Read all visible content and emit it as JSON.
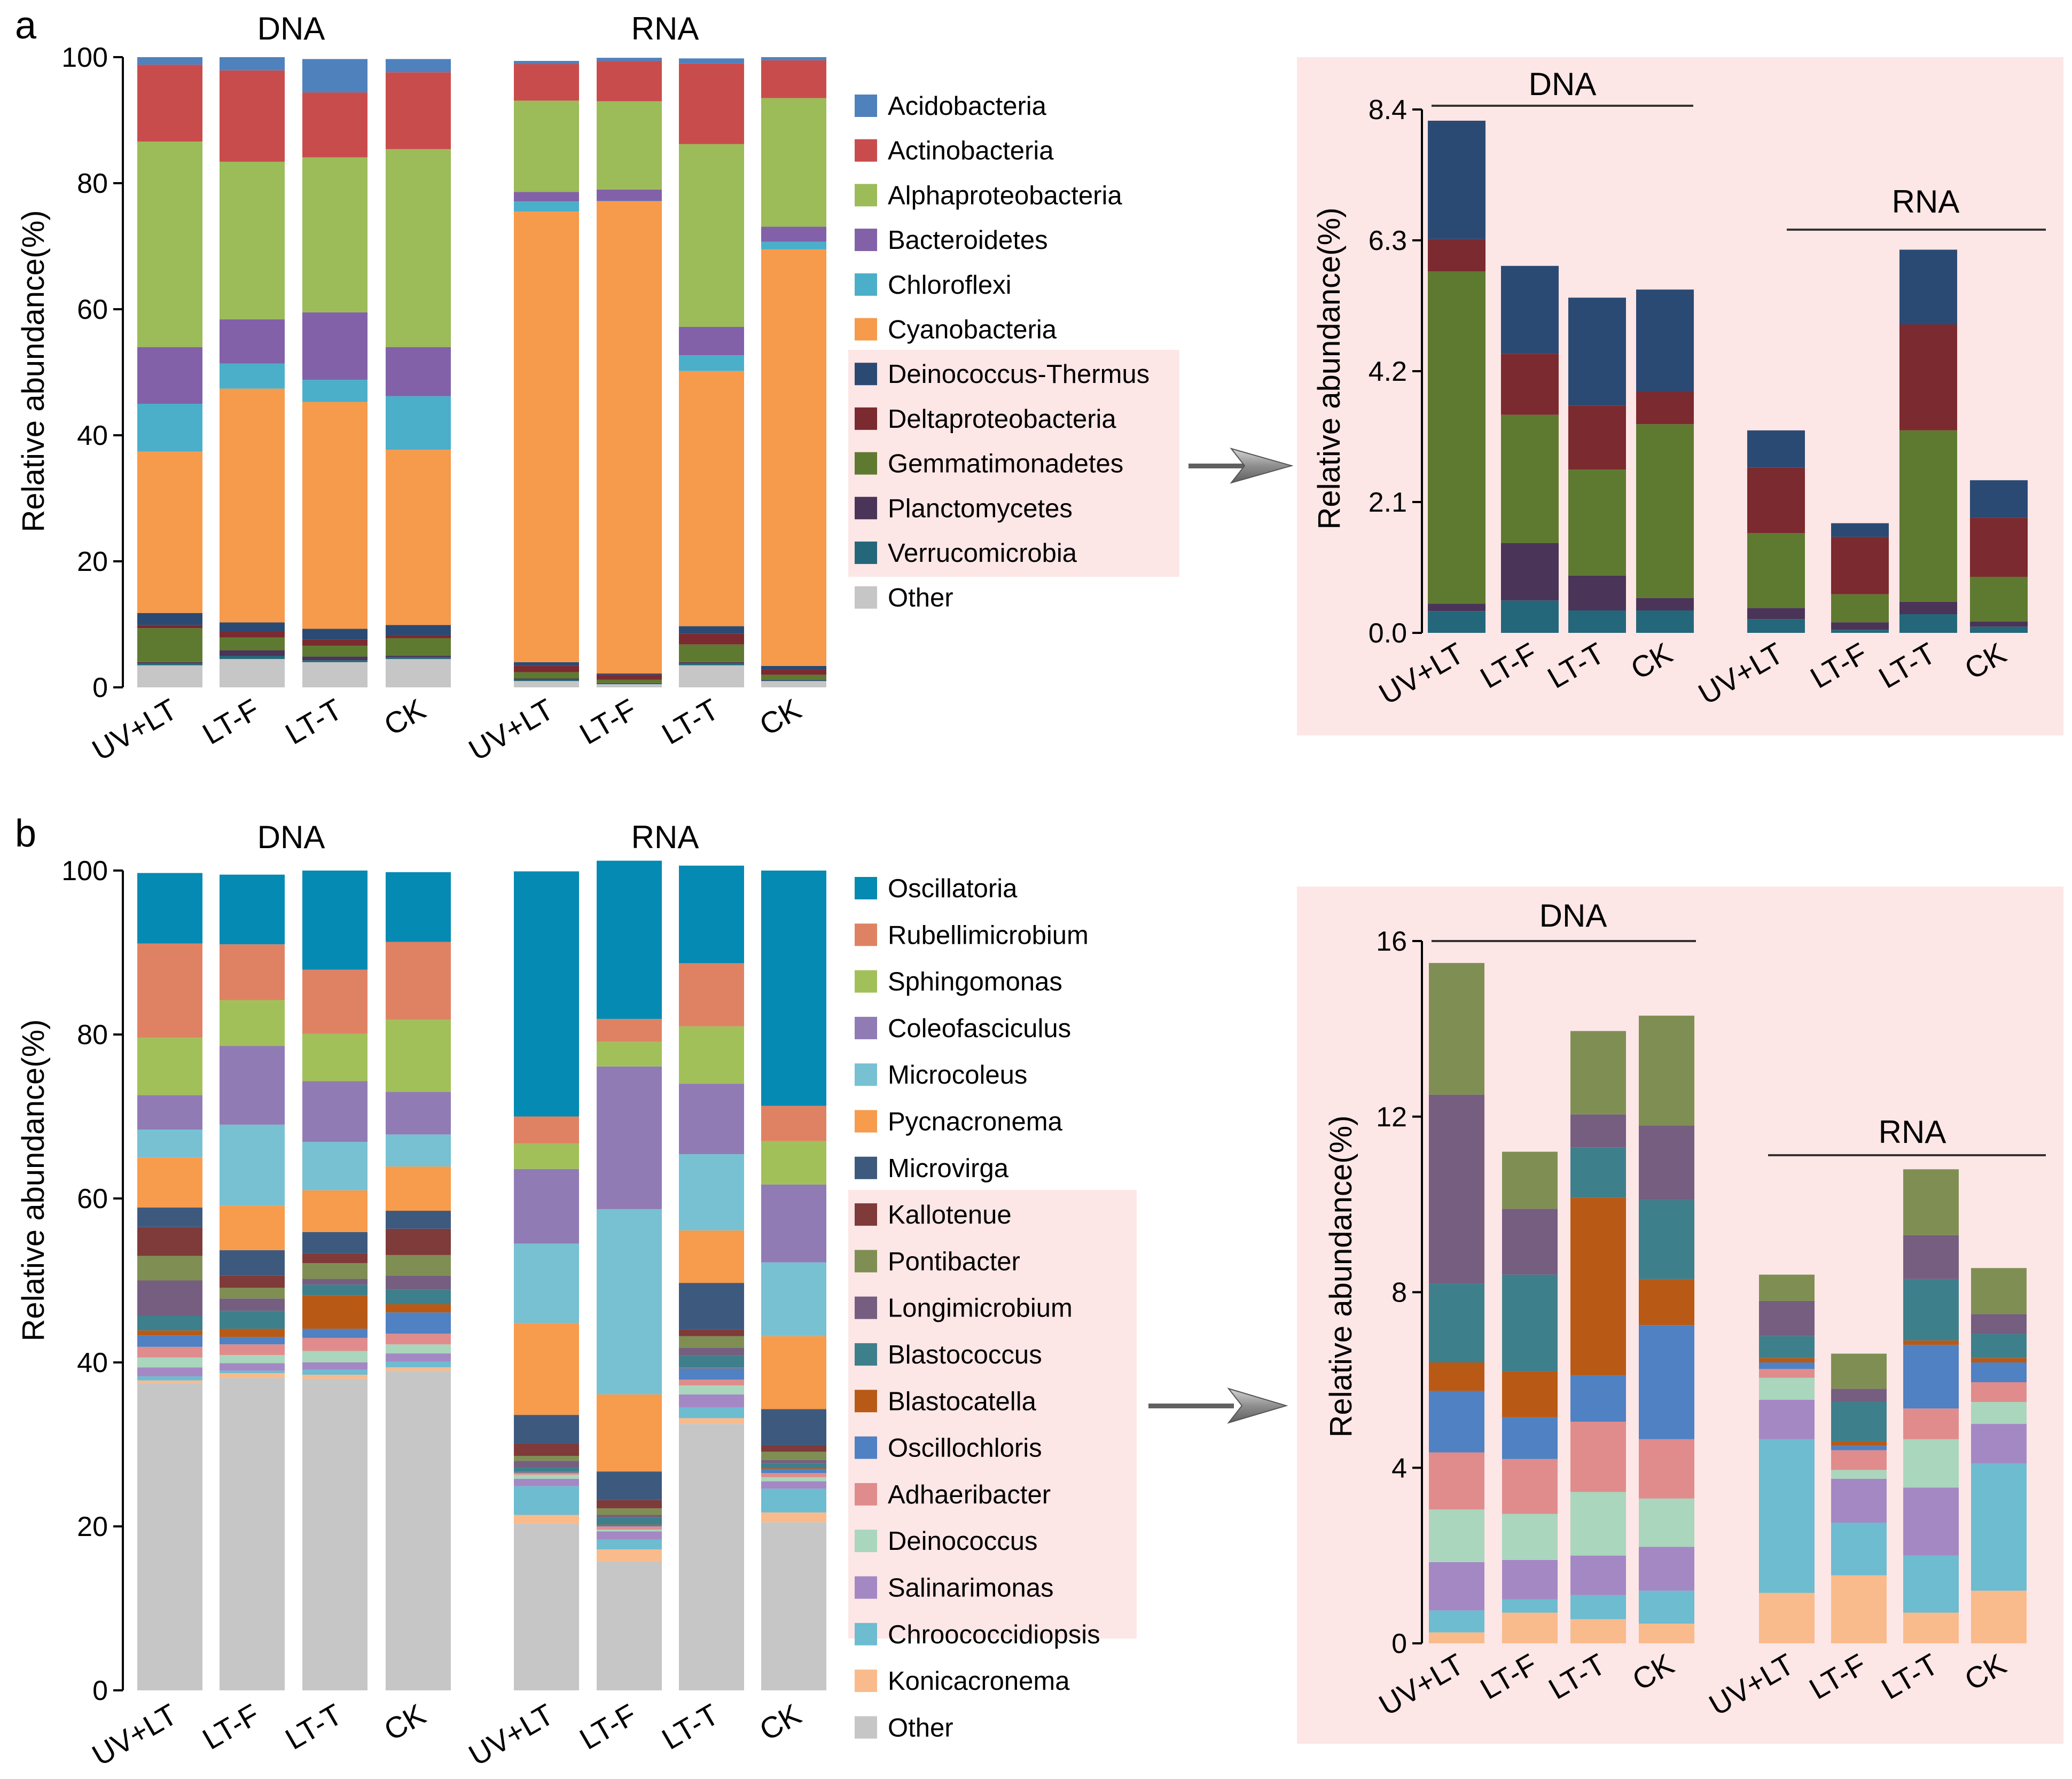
{
  "categories": [
    "UV+LT",
    "LT-F",
    "LT-T",
    "CK"
  ],
  "ylabel": "Relative abundance(%)",
  "chart_data": [
    {
      "id": "a-main",
      "type": "bar",
      "panel_letter": "a",
      "stacked": true,
      "group_titles": [
        "DNA",
        "RNA"
      ],
      "ylim": [
        0,
        100
      ],
      "yticks": [
        "0",
        "20",
        "40",
        "60",
        "80",
        "100"
      ],
      "categories": [
        "UV+LT",
        "LT-F",
        "LT-T",
        "CK",
        "UV+LT",
        "LT-F",
        "LT-T",
        "CK"
      ],
      "series": [
        {
          "name": "Other",
          "color": "#c6c6c6",
          "values": [
            3.5,
            4.5,
            4.0,
            4.5,
            1.0,
            0.5,
            3.5,
            1.0
          ]
        },
        {
          "name": "Verrucomicrobia",
          "color": "#25677a",
          "values": [
            0.3,
            0.5,
            0.3,
            0.3,
            0.2,
            0.1,
            0.3,
            0.1
          ]
        },
        {
          "name": "Planctomycetes",
          "color": "#4a3458",
          "values": [
            0.2,
            0.9,
            0.6,
            0.2,
            0.2,
            0.1,
            0.2,
            0.1
          ]
        },
        {
          "name": "Gemmatimonadetes",
          "color": "#5e7a30",
          "values": [
            5.4,
            2.0,
            1.7,
            2.8,
            1.0,
            0.5,
            2.8,
            0.8
          ]
        },
        {
          "name": "Deltaproteobacteria",
          "color": "#7b2a2f",
          "values": [
            0.5,
            1.0,
            1.0,
            0.5,
            1.0,
            0.8,
            1.7,
            0.8
          ]
        },
        {
          "name": "Deinococcus-Thermus",
          "color": "#2b4a73",
          "values": [
            1.9,
            1.4,
            1.7,
            1.6,
            0.6,
            0.2,
            1.2,
            0.6
          ]
        },
        {
          "name": "Cyanobacteria",
          "color": "#f69a4c",
          "values": [
            25.6,
            37.1,
            36.0,
            27.8,
            71.5,
            74.9,
            40.5,
            66.1
          ]
        },
        {
          "name": "Chloroflexi",
          "color": "#4bafca",
          "values": [
            7.6,
            4.0,
            3.5,
            8.5,
            1.6,
            0.1,
            2.5,
            1.2
          ]
        },
        {
          "name": "Bacteroidetes",
          "color": "#8261a8",
          "values": [
            9.0,
            7.0,
            10.7,
            7.8,
            1.5,
            1.8,
            4.5,
            2.4
          ]
        },
        {
          "name": "Alphaproteobacteria",
          "color": "#9cbb59",
          "values": [
            32.6,
            25.0,
            24.6,
            31.4,
            14.5,
            14.0,
            29.0,
            20.4
          ]
        },
        {
          "name": "Actinobacteria",
          "color": "#c94c4d",
          "values": [
            12.2,
            14.5,
            10.3,
            12.2,
            5.8,
            6.4,
            12.8,
            6.0
          ]
        },
        {
          "name": "Acidobacteria",
          "color": "#4f81bd",
          "values": [
            1.2,
            2.1,
            5.3,
            2.1,
            0.5,
            0.5,
            0.8,
            0.5
          ]
        }
      ],
      "legend_order": [
        "Acidobacteria",
        "Actinobacteria",
        "Alphaproteobacteria",
        "Bacteroidetes",
        "Chloroflexi",
        "Cyanobacteria",
        "Deinococcus-Thermus",
        "Deltaproteobacteria",
        "Gemmatimonadetes",
        "Planctomycetes",
        "Verrucomicrobia",
        "Other"
      ],
      "legend_highlighted": [
        "Deinococcus-Thermus",
        "Deltaproteobacteria",
        "Gemmatimonadetes",
        "Planctomycetes",
        "Verrucomicrobia"
      ]
    },
    {
      "id": "a-zoom",
      "type": "bar",
      "stacked": true,
      "group_titles": [
        "DNA",
        "RNA"
      ],
      "ylim": [
        0,
        8.4
      ],
      "yticks": [
        "0.0",
        "2.1",
        "4.2",
        "6.3",
        "8.4"
      ],
      "categories": [
        "UV+LT",
        "LT-F",
        "LT-T",
        "CK",
        "UV+LT",
        "LT-F",
        "LT-T",
        "CK"
      ],
      "series": [
        {
          "name": "Verrucomicrobia",
          "color": "#25677a",
          "values": [
            0.35,
            0.52,
            0.36,
            0.36,
            0.22,
            0.05,
            0.3,
            0.1
          ]
        },
        {
          "name": "Planctomycetes",
          "color": "#4a3458",
          "values": [
            0.12,
            0.92,
            0.56,
            0.2,
            0.18,
            0.12,
            0.2,
            0.08
          ]
        },
        {
          "name": "Gemmatimonadetes",
          "color": "#5e7a30",
          "values": [
            5.33,
            2.06,
            1.7,
            2.79,
            1.2,
            0.45,
            2.75,
            0.72
          ]
        },
        {
          "name": "Deltaproteobacteria",
          "color": "#7b2a2f",
          "values": [
            0.52,
            0.98,
            1.03,
            0.52,
            1.05,
            0.92,
            1.7,
            0.95
          ]
        },
        {
          "name": "Deinococcus-Thermus",
          "color": "#2b4a73",
          "values": [
            1.9,
            1.41,
            1.73,
            1.64,
            0.6,
            0.22,
            1.2,
            0.6
          ]
        }
      ]
    },
    {
      "id": "b-main",
      "type": "bar",
      "panel_letter": "b",
      "stacked": true,
      "group_titles": [
        "DNA",
        "RNA"
      ],
      "ylim": [
        0,
        100
      ],
      "yticks": [
        "0",
        "20",
        "40",
        "60",
        "80",
        "100"
      ],
      "categories": [
        "UV+LT",
        "LT-F",
        "LT-T",
        "CK",
        "UV+LT",
        "LT-F",
        "LT-T",
        "CK"
      ],
      "series": [
        {
          "name": "Other",
          "color": "#c6c6c6",
          "values": [
            37.5,
            38.1,
            38.0,
            39.0,
            20.3,
            15.7,
            32.5,
            20.5
          ]
        },
        {
          "name": "Konicacronema",
          "color": "#f9bb8c",
          "values": [
            0.3,
            0.6,
            0.5,
            0.4,
            1.1,
            1.5,
            0.7,
            1.2
          ]
        },
        {
          "name": "Chroococcidiopsis",
          "color": "#6dbcd0",
          "values": [
            0.5,
            0.3,
            0.6,
            0.7,
            3.5,
            1.2,
            1.3,
            2.9
          ]
        },
        {
          "name": "Salinarimonas",
          "color": "#a488c4",
          "values": [
            1.1,
            0.9,
            0.9,
            1.0,
            0.9,
            1.0,
            1.6,
            0.9
          ]
        },
        {
          "name": "Deinococcus",
          "color": "#a9d6bd",
          "values": [
            1.2,
            1.0,
            1.4,
            1.1,
            0.5,
            0.2,
            1.1,
            0.5
          ]
        },
        {
          "name": "Adhaeribacter",
          "color": "#e08c8c",
          "values": [
            1.3,
            1.3,
            1.6,
            1.3,
            0.2,
            0.4,
            0.7,
            0.5
          ]
        },
        {
          "name": "Oscillochloris",
          "color": "#4f81c3",
          "values": [
            1.4,
            0.9,
            1.1,
            2.6,
            0.1,
            0.1,
            1.4,
            0.5
          ]
        },
        {
          "name": "Blastocatella",
          "color": "#b85a16",
          "values": [
            0.6,
            1.0,
            4.1,
            1.0,
            0.1,
            0.1,
            0.1,
            0.1
          ]
        },
        {
          "name": "Blastococcus",
          "color": "#3e7f8c",
          "values": [
            1.8,
            2.2,
            1.3,
            1.8,
            0.5,
            0.9,
            1.4,
            0.6
          ]
        },
        {
          "name": "Longimicrobium",
          "color": "#755e80",
          "values": [
            4.3,
            1.5,
            0.7,
            1.7,
            0.8,
            0.3,
            1.0,
            0.4
          ]
        },
        {
          "name": "Pontibacter",
          "color": "#7f8f53",
          "values": [
            3.0,
            1.3,
            1.9,
            2.5,
            0.6,
            0.8,
            1.4,
            1.0
          ]
        },
        {
          "name": "Kallotenue",
          "color": "#7f3a3a",
          "values": [
            3.5,
            1.5,
            1.2,
            3.2,
            1.5,
            1.0,
            0.8,
            0.8
          ]
        },
        {
          "name": "Microvirga",
          "color": "#3d5a7e",
          "values": [
            2.4,
            3.1,
            2.6,
            2.2,
            3.5,
            3.5,
            5.7,
            4.4
          ]
        },
        {
          "name": "Pycnacronema",
          "color": "#f79b4d",
          "values": [
            6.1,
            5.4,
            5.1,
            5.4,
            11.2,
            9.4,
            6.4,
            8.9
          ]
        },
        {
          "name": "Microcoleus",
          "color": "#77c1d3",
          "values": [
            3.4,
            9.9,
            5.9,
            3.9,
            9.7,
            22.6,
            9.3,
            9.0
          ]
        },
        {
          "name": "Coleofasciculus",
          "color": "#917bb4",
          "values": [
            4.2,
            9.6,
            7.4,
            5.2,
            9.1,
            17.4,
            8.6,
            9.5
          ]
        },
        {
          "name": "Sphingomonas",
          "color": "#a2c05a",
          "values": [
            7.0,
            5.6,
            5.8,
            8.8,
            3.1,
            3.0,
            7.0,
            5.3
          ]
        },
        {
          "name": "Rubellimicrobium",
          "color": "#df8264",
          "values": [
            11.5,
            6.8,
            7.8,
            9.5,
            3.3,
            2.8,
            7.7,
            4.3
          ]
        },
        {
          "name": "Oscillatoria",
          "color": "#048ab3",
          "values": [
            8.6,
            8.5,
            12.1,
            8.5,
            29.9,
            19.3,
            11.9,
            28.7
          ]
        }
      ],
      "legend_order": [
        "Oscillatoria",
        "Rubellimicrobium",
        "Sphingomonas",
        "Coleofasciculus",
        "Microcoleus",
        "Pycnacronema",
        "Microvirga",
        "Kallotenue",
        "Pontibacter",
        "Longimicrobium",
        "Blastococcus",
        "Blastocatella",
        "Oscillochloris",
        "Adhaeribacter",
        "Deinococcus",
        "Salinarimonas",
        "Chroococcidiopsis",
        "Konicacronema",
        "Other"
      ],
      "legend_highlighted": [
        "Pontibacter",
        "Longimicrobium",
        "Blastococcus",
        "Blastocatella",
        "Oscillochloris",
        "Adhaeribacter",
        "Deinococcus",
        "Salinarimonas",
        "Chroococcidiopsis",
        "Konicacronema"
      ]
    },
    {
      "id": "b-zoom",
      "type": "bar",
      "stacked": true,
      "group_titles": [
        "DNA",
        "RNA"
      ],
      "ylim": [
        0,
        16
      ],
      "yticks": [
        "0",
        "4",
        "8",
        "12",
        "16"
      ],
      "categories": [
        "UV+LT",
        "LT-F",
        "LT-T",
        "CK",
        "UV+LT",
        "LT-F",
        "LT-T",
        "CK"
      ],
      "series": [
        {
          "name": "Konicacronema",
          "color": "#f9bb8c",
          "values": [
            0.25,
            0.7,
            0.55,
            0.45,
            1.15,
            1.55,
            0.7,
            1.2
          ]
        },
        {
          "name": "Chroococcidiopsis",
          "color": "#6dbcd0",
          "values": [
            0.5,
            0.3,
            0.55,
            0.75,
            3.5,
            1.2,
            1.3,
            2.9
          ]
        },
        {
          "name": "Salinarimonas",
          "color": "#a488c4",
          "values": [
            1.1,
            0.9,
            0.9,
            1.0,
            0.9,
            1.0,
            1.55,
            0.9
          ]
        },
        {
          "name": "Deinococcus",
          "color": "#a9d6bd",
          "values": [
            1.2,
            1.05,
            1.45,
            1.1,
            0.5,
            0.2,
            1.1,
            0.5
          ]
        },
        {
          "name": "Adhaeribacter",
          "color": "#e08c8c",
          "values": [
            1.3,
            1.25,
            1.6,
            1.35,
            0.2,
            0.45,
            0.7,
            0.45
          ]
        },
        {
          "name": "Oscillochloris",
          "color": "#4f81c3",
          "values": [
            1.4,
            0.95,
            1.05,
            2.6,
            0.15,
            0.1,
            1.45,
            0.45
          ]
        },
        {
          "name": "Blastocatella",
          "color": "#b85a16",
          "values": [
            0.65,
            1.05,
            4.05,
            1.05,
            0.1,
            0.1,
            0.1,
            0.1
          ]
        },
        {
          "name": "Blastococcus",
          "color": "#3e7f8c",
          "values": [
            1.8,
            2.2,
            1.15,
            1.8,
            0.5,
            0.9,
            1.4,
            0.55
          ]
        },
        {
          "name": "Longimicrobium",
          "color": "#755e80",
          "values": [
            4.3,
            1.5,
            0.75,
            1.7,
            0.8,
            0.3,
            1.0,
            0.45
          ]
        },
        {
          "name": "Pontibacter",
          "color": "#7f8f53",
          "values": [
            3.0,
            1.3,
            1.9,
            2.5,
            0.6,
            0.8,
            1.5,
            1.05
          ]
        }
      ]
    }
  ]
}
